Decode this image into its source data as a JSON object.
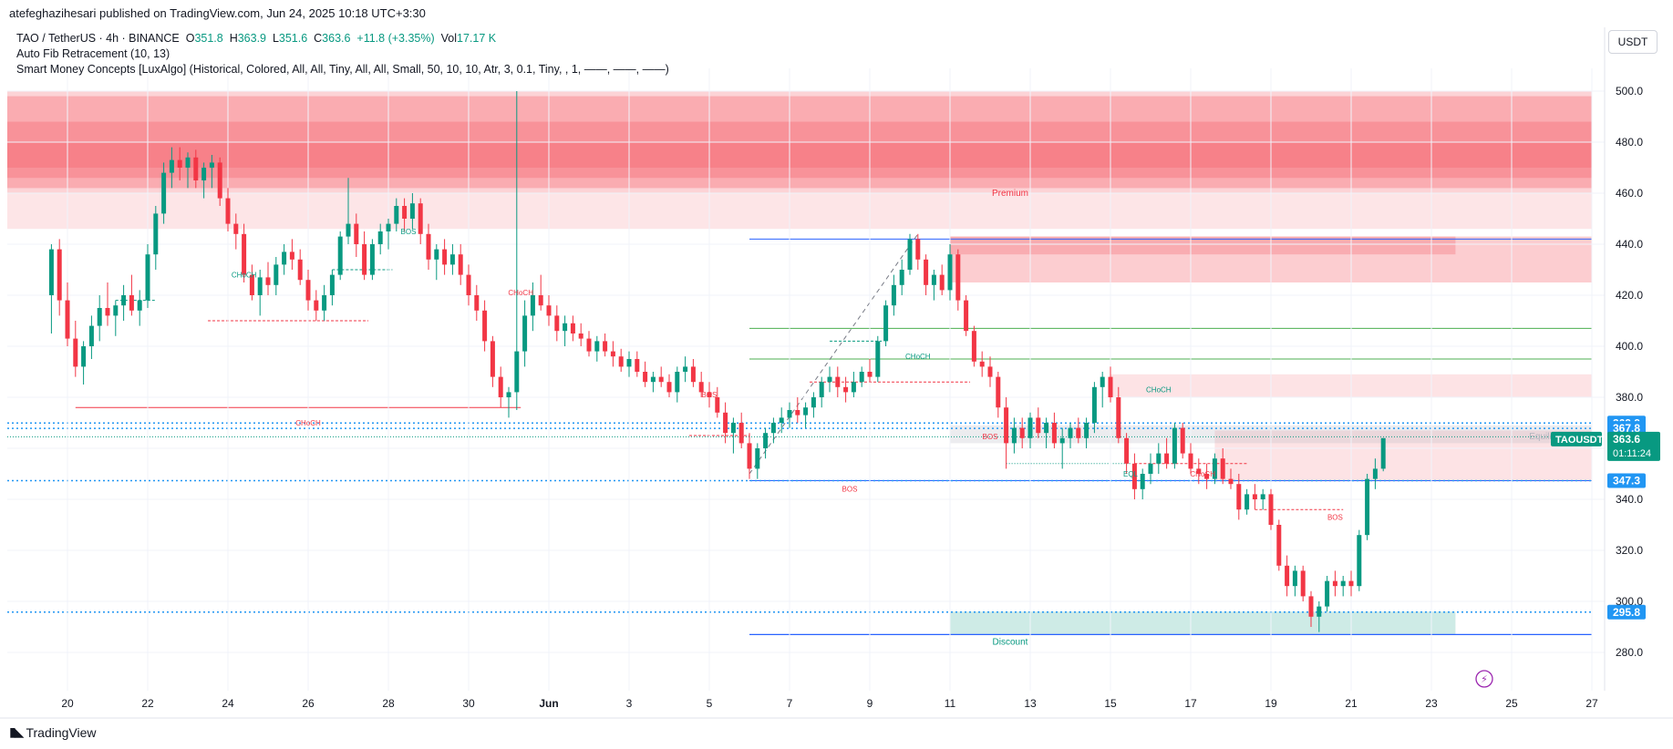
{
  "header": {
    "published": "atefeghazihesari published on TradingView.com, Jun 24, 2025 10:18 UTC+3:30"
  },
  "legend": {
    "symbol": "TAO / TetherUS · 4h · BINANCE",
    "open_label": "O",
    "open": "351.8",
    "high_label": "H",
    "high": "363.9",
    "low_label": "L",
    "low": "351.6",
    "close_label": "C",
    "close": "363.6",
    "change": "+11.8 (+3.35%)",
    "vol_label": "Vol",
    "vol": "17.17 K",
    "indicator1": "Auto Fib Retracement (10, 13)",
    "indicator2": "Smart Money Concepts [LuxAlgo] (Historical, Colored, All, All, Tiny, All, All, Small, 50, 10, 10, Atr, 3, 0.1, Tiny, , 1, ——, ——, ——)"
  },
  "currency_button": "USDT",
  "footer": {
    "brand": "TradingView",
    "logo_icon": "tradingview-logo-icon"
  },
  "colors": {
    "up": "#089981",
    "down": "#f23645",
    "blue": "#2962ff",
    "price_label": "#2196f3"
  },
  "chart_data": {
    "type": "candlestick",
    "symbol": "TAOUSDT",
    "timeframe": "4h",
    "ylim": [
      270,
      505
    ],
    "y_ticks": [
      280,
      300,
      320,
      340,
      360,
      380,
      400,
      420,
      440,
      460,
      480,
      500
    ],
    "x_tick_labels": [
      "20",
      "22",
      "24",
      "26",
      "28",
      "30",
      "Jun",
      "3",
      "5",
      "7",
      "9",
      "11",
      "13",
      "15",
      "17",
      "19",
      "21",
      "23",
      "25",
      "27"
    ],
    "price_labels": [
      {
        "value": 369.9,
        "text": "369.9",
        "color": "#2196f3"
      },
      {
        "value": 367.8,
        "text": "367.8",
        "color": "#2196f3"
      },
      {
        "value": 347.3,
        "text": "347.3",
        "color": "#2196f3"
      },
      {
        "value": 295.8,
        "text": "295.8",
        "color": "#2196f3"
      }
    ],
    "current_price": {
      "symbol": "TAOUSDT",
      "value": 363.6,
      "text": "363.6",
      "countdown": "01:11:24"
    },
    "annotations": [
      {
        "text": "Premium",
        "price": 459,
        "day": 11.5,
        "color": "#f23645"
      },
      {
        "text": "Equilibrium",
        "price": 363.5,
        "day": 25,
        "color": "#b2b5be"
      },
      {
        "text": "Discount",
        "price": 283,
        "day": 11.5,
        "color": "#089981"
      },
      {
        "text": "CHoCH",
        "price": 369,
        "day": -6,
        "color": "#f23645"
      },
      {
        "text": "BOS",
        "price": 343,
        "day": 7.5,
        "color": "#f23645"
      },
      {
        "text": "CHoCH",
        "price": 427,
        "day": -7.6,
        "color": "#089981"
      },
      {
        "text": "BOS",
        "price": 444,
        "day": -3.5,
        "color": "#089981"
      },
      {
        "text": "CHoCH",
        "price": 420,
        "day": -0.7,
        "color": "#f23645"
      },
      {
        "text": "BOS",
        "price": 380,
        "day": 4,
        "color": "#f23645"
      },
      {
        "text": "CHoCH",
        "price": 395,
        "day": 9.2,
        "color": "#089981"
      },
      {
        "text": "CHoCH",
        "price": 382,
        "day": 15.2,
        "color": "#089981"
      },
      {
        "text": "EQL",
        "price": 349,
        "day": 14.5,
        "color": "#089981"
      },
      {
        "text": "CHoCH",
        "price": 349,
        "day": 16.3,
        "color": "#f23645"
      },
      {
        "text": "BOS",
        "price": 332,
        "day": 19.6,
        "color": "#f23645"
      },
      {
        "text": "BOS",
        "price": 363.5,
        "day": 11.0,
        "color": "#f23645"
      }
    ],
    "candles": [
      [
        -12.4,
        420,
        440,
        405,
        438
      ],
      [
        -12.2,
        438,
        442,
        412,
        418
      ],
      [
        -12.0,
        418,
        425,
        400,
        403
      ],
      [
        -11.8,
        403,
        410,
        388,
        392
      ],
      [
        -11.6,
        392,
        402,
        385,
        400
      ],
      [
        -11.4,
        400,
        412,
        395,
        408
      ],
      [
        -11.2,
        408,
        420,
        402,
        415
      ],
      [
        -11.0,
        415,
        425,
        408,
        412
      ],
      [
        -10.8,
        412,
        418,
        404,
        416
      ],
      [
        -10.6,
        416,
        424,
        410,
        420
      ],
      [
        -10.4,
        420,
        428,
        412,
        414
      ],
      [
        -10.2,
        414,
        422,
        408,
        418
      ],
      [
        -10.0,
        418,
        440,
        415,
        436
      ],
      [
        -9.8,
        436,
        455,
        430,
        452
      ],
      [
        -9.6,
        452,
        472,
        448,
        468
      ],
      [
        -9.4,
        468,
        478,
        462,
        473
      ],
      [
        -9.2,
        473,
        478,
        465,
        470
      ],
      [
        -9.0,
        470,
        476,
        462,
        474
      ],
      [
        -8.8,
        474,
        477,
        462,
        465
      ],
      [
        -8.6,
        465,
        472,
        458,
        470
      ],
      [
        -8.4,
        470,
        475,
        462,
        472
      ],
      [
        -8.2,
        472,
        474,
        455,
        458
      ],
      [
        -8.0,
        458,
        462,
        445,
        448
      ],
      [
        -7.8,
        448,
        452,
        438,
        444
      ],
      [
        -7.6,
        444,
        448,
        425,
        428
      ],
      [
        -7.4,
        428,
        432,
        418,
        420
      ],
      [
        -7.2,
        420,
        430,
        412,
        427
      ],
      [
        -7.0,
        427,
        433,
        420,
        424
      ],
      [
        -6.8,
        424,
        435,
        420,
        432
      ],
      [
        -6.6,
        432,
        440,
        428,
        437
      ],
      [
        -6.4,
        437,
        442,
        430,
        434
      ],
      [
        -6.2,
        434,
        438,
        424,
        426
      ],
      [
        -6.0,
        426,
        430,
        414,
        418
      ],
      [
        -5.8,
        418,
        422,
        410,
        414
      ],
      [
        -5.6,
        414,
        424,
        410,
        420
      ],
      [
        -5.4,
        420,
        430,
        416,
        428
      ],
      [
        -5.2,
        428,
        445,
        426,
        443
      ],
      [
        -5.0,
        443,
        466,
        440,
        448
      ],
      [
        -4.8,
        448,
        452,
        435,
        440
      ],
      [
        -4.6,
        440,
        445,
        426,
        428
      ],
      [
        -4.4,
        428,
        442,
        426,
        440
      ],
      [
        -4.2,
        440,
        448,
        436,
        445
      ],
      [
        -4.0,
        445,
        450,
        438,
        448
      ],
      [
        -3.8,
        448,
        458,
        445,
        455
      ],
      [
        -3.6,
        455,
        458,
        445,
        450
      ],
      [
        -3.4,
        450,
        460,
        446,
        456
      ],
      [
        -3.2,
        456,
        458,
        440,
        444
      ],
      [
        -3.0,
        444,
        448,
        430,
        434
      ],
      [
        -2.8,
        434,
        440,
        426,
        438
      ],
      [
        -2.6,
        438,
        442,
        428,
        432
      ],
      [
        -2.4,
        432,
        440,
        428,
        436
      ],
      [
        -2.2,
        436,
        440,
        424,
        428
      ],
      [
        -2.0,
        428,
        432,
        416,
        420
      ],
      [
        -1.8,
        420,
        424,
        410,
        414
      ],
      [
        -1.6,
        414,
        418,
        398,
        402
      ],
      [
        -1.4,
        402,
        404,
        384,
        388
      ],
      [
        -1.2,
        388,
        392,
        376,
        380
      ],
      [
        -1.0,
        380,
        384,
        372,
        382
      ],
      [
        -0.8,
        382,
        500,
        375,
        398
      ],
      [
        -0.6,
        398,
        418,
        392,
        412
      ],
      [
        -0.4,
        412,
        425,
        406,
        420
      ],
      [
        -0.2,
        420,
        428,
        414,
        416
      ],
      [
        0.0,
        416,
        420,
        408,
        412
      ],
      [
        0.2,
        412,
        416,
        402,
        406
      ],
      [
        0.4,
        406,
        412,
        400,
        409
      ],
      [
        0.6,
        409,
        412,
        402,
        405
      ],
      [
        0.8,
        405,
        409,
        400,
        403
      ],
      [
        1.0,
        403,
        406,
        396,
        398
      ],
      [
        1.2,
        398,
        404,
        394,
        402
      ],
      [
        1.4,
        402,
        405,
        396,
        398
      ],
      [
        1.6,
        398,
        402,
        392,
        396
      ],
      [
        1.8,
        396,
        399,
        390,
        392
      ],
      [
        2.0,
        392,
        398,
        388,
        395
      ],
      [
        2.2,
        395,
        398,
        388,
        390
      ],
      [
        2.4,
        390,
        394,
        384,
        386
      ],
      [
        2.6,
        386,
        390,
        382,
        388
      ],
      [
        2.8,
        388,
        392,
        384,
        386
      ],
      [
        3.0,
        386,
        389,
        380,
        382
      ],
      [
        3.2,
        382,
        392,
        378,
        390
      ],
      [
        3.4,
        390,
        396,
        386,
        392
      ],
      [
        3.6,
        392,
        395,
        384,
        386
      ],
      [
        3.8,
        386,
        390,
        380,
        382
      ],
      [
        4.0,
        382,
        386,
        376,
        380
      ],
      [
        4.2,
        380,
        384,
        372,
        374
      ],
      [
        4.4,
        374,
        378,
        362,
        366
      ],
      [
        4.6,
        366,
        372,
        358,
        370
      ],
      [
        4.8,
        370,
        374,
        360,
        362
      ],
      [
        5.0,
        362,
        366,
        348,
        352
      ],
      [
        5.2,
        352,
        362,
        348,
        360
      ],
      [
        5.4,
        360,
        368,
        356,
        366
      ],
      [
        5.6,
        366,
        372,
        362,
        370
      ],
      [
        5.8,
        370,
        376,
        366,
        372
      ],
      [
        6.0,
        372,
        378,
        368,
        375
      ],
      [
        6.2,
        375,
        380,
        370,
        373
      ],
      [
        6.4,
        373,
        378,
        368,
        376
      ],
      [
        6.6,
        376,
        382,
        372,
        380
      ],
      [
        6.8,
        380,
        388,
        376,
        386
      ],
      [
        7.0,
        386,
        392,
        382,
        388
      ],
      [
        7.2,
        388,
        392,
        380,
        384
      ],
      [
        7.4,
        384,
        388,
        378,
        382
      ],
      [
        7.6,
        382,
        390,
        380,
        386
      ],
      [
        7.8,
        386,
        392,
        384,
        390
      ],
      [
        8.0,
        390,
        395,
        386,
        388
      ],
      [
        8.2,
        388,
        404,
        386,
        402
      ],
      [
        8.4,
        402,
        418,
        400,
        416
      ],
      [
        8.6,
        416,
        428,
        412,
        424
      ],
      [
        8.8,
        424,
        434,
        420,
        430
      ],
      [
        9.0,
        430,
        444,
        428,
        442
      ],
      [
        9.2,
        442,
        444,
        430,
        434
      ],
      [
        9.4,
        434,
        436,
        420,
        424
      ],
      [
        9.6,
        424,
        430,
        418,
        428
      ],
      [
        9.8,
        428,
        432,
        420,
        422
      ],
      [
        10.0,
        422,
        440,
        418,
        436
      ],
      [
        10.2,
        436,
        438,
        414,
        418
      ],
      [
        10.4,
        418,
        420,
        404,
        406
      ],
      [
        10.6,
        406,
        408,
        392,
        394
      ],
      [
        10.8,
        394,
        398,
        388,
        392
      ],
      [
        11.0,
        392,
        396,
        384,
        388
      ],
      [
        11.2,
        388,
        390,
        372,
        376
      ],
      [
        11.4,
        376,
        380,
        352,
        362
      ],
      [
        11.6,
        362,
        372,
        358,
        368
      ],
      [
        11.8,
        368,
        372,
        360,
        364
      ],
      [
        12.0,
        364,
        374,
        360,
        372
      ],
      [
        12.2,
        372,
        376,
        364,
        366
      ],
      [
        12.4,
        366,
        372,
        360,
        370
      ],
      [
        12.6,
        370,
        374,
        360,
        362
      ],
      [
        12.8,
        362,
        368,
        352,
        364
      ],
      [
        13.0,
        364,
        370,
        360,
        368
      ],
      [
        13.2,
        368,
        372,
        362,
        364
      ],
      [
        13.4,
        364,
        372,
        360,
        370
      ],
      [
        13.6,
        370,
        386,
        366,
        384
      ],
      [
        13.8,
        384,
        390,
        376,
        388
      ],
      [
        14.0,
        388,
        392,
        378,
        380
      ],
      [
        14.2,
        380,
        384,
        362,
        364
      ],
      [
        14.4,
        364,
        366,
        350,
        354
      ],
      [
        14.6,
        354,
        358,
        340,
        344
      ],
      [
        14.8,
        344,
        352,
        340,
        350
      ],
      [
        15.0,
        350,
        358,
        346,
        354
      ],
      [
        15.2,
        354,
        362,
        350,
        358
      ],
      [
        15.4,
        358,
        364,
        352,
        354
      ],
      [
        15.6,
        354,
        370,
        352,
        368
      ],
      [
        15.8,
        368,
        370,
        356,
        358
      ],
      [
        16.0,
        358,
        362,
        350,
        352
      ],
      [
        16.2,
        352,
        356,
        346,
        350
      ],
      [
        16.4,
        350,
        354,
        344,
        348
      ],
      [
        16.6,
        348,
        358,
        346,
        356
      ],
      [
        16.8,
        356,
        360,
        346,
        348
      ],
      [
        17.0,
        348,
        352,
        344,
        346
      ],
      [
        17.2,
        346,
        350,
        332,
        336
      ],
      [
        17.4,
        336,
        344,
        334,
        342
      ],
      [
        17.6,
        342,
        346,
        336,
        340
      ],
      [
        17.8,
        340,
        344,
        336,
        342
      ],
      [
        18.0,
        342,
        344,
        328,
        330
      ],
      [
        18.2,
        330,
        332,
        312,
        314
      ],
      [
        18.4,
        314,
        318,
        302,
        306
      ],
      [
        18.6,
        306,
        314,
        302,
        312
      ],
      [
        18.8,
        312,
        314,
        300,
        302
      ],
      [
        19.0,
        302,
        304,
        290,
        294
      ],
      [
        19.2,
        294,
        300,
        288,
        298
      ],
      [
        19.4,
        298,
        310,
        296,
        308
      ],
      [
        19.6,
        308,
        312,
        302,
        306
      ],
      [
        19.8,
        306,
        310,
        302,
        308
      ],
      [
        20.0,
        308,
        312,
        302,
        306
      ],
      [
        20.2,
        306,
        328,
        304,
        326
      ],
      [
        20.4,
        326,
        350,
        324,
        348
      ],
      [
        20.6,
        348,
        356,
        344,
        352
      ],
      [
        20.8,
        352,
        364,
        351,
        364
      ]
    ]
  }
}
